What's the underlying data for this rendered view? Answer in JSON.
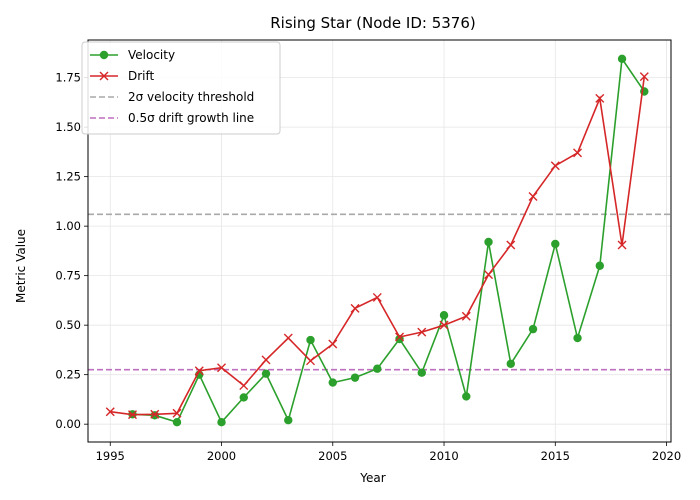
{
  "chart_data": {
    "type": "line",
    "title": "Rising Star (Node ID: 5376)",
    "xlabel": "Year",
    "ylabel": "Metric Value",
    "xlim": [
      1994,
      2020.2
    ],
    "ylim": [
      -0.09,
      1.94
    ],
    "xticks": [
      1995,
      2000,
      2005,
      2010,
      2015,
      2020
    ],
    "yticks": [
      0.0,
      0.25,
      0.5,
      0.75,
      1.0,
      1.25,
      1.5,
      1.75
    ],
    "xtick_labels": [
      "1995",
      "2000",
      "2005",
      "2010",
      "2015",
      "2020"
    ],
    "ytick_labels": [
      "0.00",
      "0.25",
      "0.50",
      "0.75",
      "1.00",
      "1.25",
      "1.50",
      "1.75"
    ],
    "grid": true,
    "legend_position": "top-left",
    "series": [
      {
        "name": "Velocity",
        "color": "#2ca02c",
        "marker": "circle",
        "x": [
          1996,
          1997,
          1998,
          1999,
          2000,
          2001,
          2002,
          2003,
          2004,
          2005,
          2006,
          2007,
          2008,
          2009,
          2010,
          2011,
          2012,
          2013,
          2014,
          2015,
          2016,
          2017,
          2018,
          2019
        ],
        "values": [
          0.05,
          0.045,
          0.01,
          0.25,
          0.01,
          0.135,
          0.255,
          0.02,
          0.425,
          0.21,
          0.235,
          0.28,
          0.43,
          0.26,
          0.55,
          0.14,
          0.92,
          0.305,
          0.48,
          0.91,
          0.435,
          0.8,
          1.845,
          1.68
        ]
      },
      {
        "name": "Drift",
        "color": "#d62728",
        "marker": "x",
        "x": [
          1995,
          1996,
          1997,
          1998,
          1999,
          2000,
          2001,
          2002,
          2003,
          2004,
          2005,
          2006,
          2007,
          2008,
          2009,
          2010,
          2011,
          2012,
          2013,
          2014,
          2015,
          2016,
          2017,
          2018,
          2019
        ],
        "values": [
          0.063,
          0.048,
          0.05,
          0.055,
          0.27,
          0.285,
          0.195,
          0.325,
          0.435,
          0.32,
          0.405,
          0.585,
          0.64,
          0.44,
          0.465,
          0.5,
          0.545,
          0.755,
          0.905,
          1.15,
          1.305,
          1.37,
          1.645,
          0.905,
          1.755
        ]
      }
    ],
    "reference_lines": [
      {
        "name": "2σ velocity threshold",
        "value": 1.06,
        "color": "#a9a9a9"
      },
      {
        "name": "0.5σ drift growth line",
        "value": 0.275,
        "color": "#bf6fbf"
      }
    ]
  }
}
